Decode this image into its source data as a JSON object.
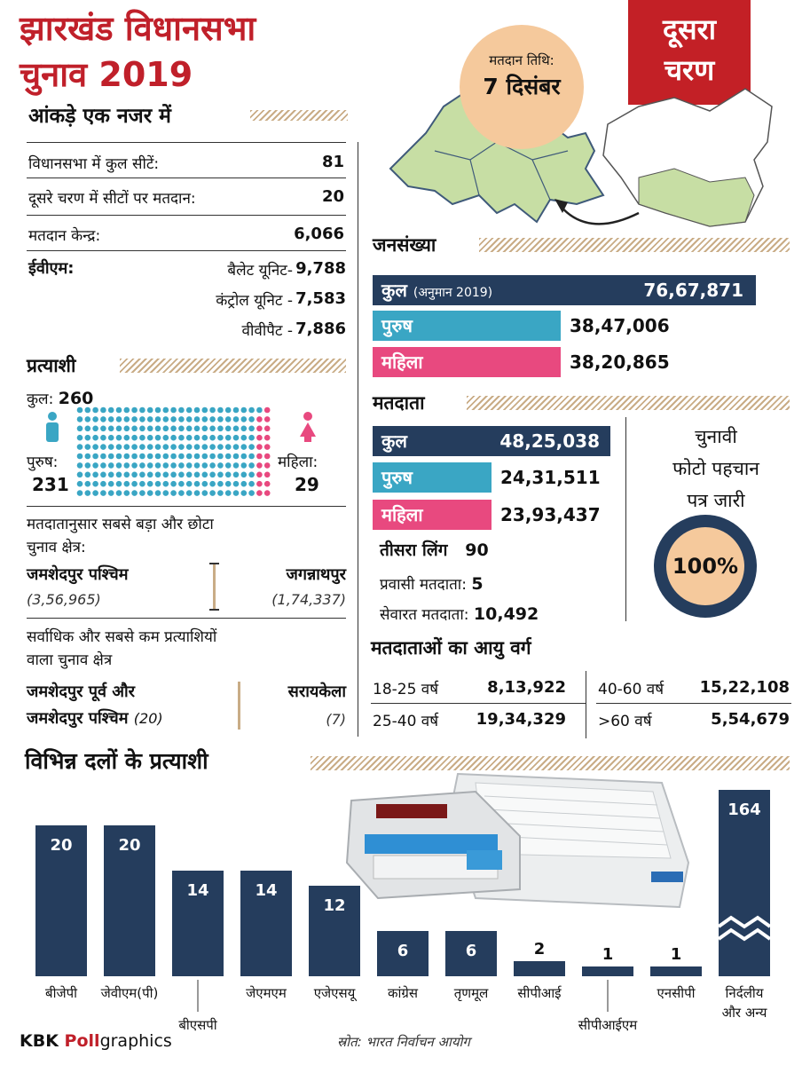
{
  "header": {
    "title_line1": "झारखंड विधानसभा",
    "title_line2": "चुनाव 2019",
    "subtitle": "आंकड़े एक नजर में",
    "stage_line1": "दूसरा",
    "stage_line2": "चरण",
    "poll_date_label": "मतदान तिथि:",
    "poll_date": "7 दिसंबर"
  },
  "stats": [
    {
      "label": "विधानसभा में कुल सीटें:",
      "value": "81"
    },
    {
      "label": "दूसरे चरण में सीटों पर मतदान:",
      "value": "20"
    },
    {
      "label": "मतदान केन्द्र:",
      "value": "6,066"
    }
  ],
  "evm": {
    "label": "ईवीएम:",
    "rows": [
      {
        "label": "बैलेट यूनिट-",
        "value": "9,788"
      },
      {
        "label": "कंट्रोल यूनिट -",
        "value": "7,583"
      },
      {
        "label": "वीवीपैट -",
        "value": "7,886"
      }
    ]
  },
  "candidates": {
    "heading": "प्रत्याशी",
    "total_label": "कुल:",
    "total": "260",
    "male_label": "पुरुष:",
    "male": "231",
    "female_label": "महिला:",
    "female": "29",
    "male_color": "#3aa6c4",
    "female_color": "#e8497f"
  },
  "largest_smallest": {
    "heading_line1": "मतदातानुसार सबसे बड़ा और छोटा",
    "heading_line2": "चुनाव क्षेत्र:",
    "largest_name": "जमशेदपुर पश्चिम",
    "largest_value": "(3,56,965)",
    "smallest_name": "जगन्नाथपुर",
    "smallest_value": "(1,74,337)"
  },
  "most_least_candidates": {
    "heading_line1": "सर्वाधिक और सबसे कम प्रत्याशियों",
    "heading_line2": "वाला चुनाव क्षेत्र",
    "most_line1": "जमशेदपुर पूर्व और",
    "most_line2": "जमशेदपुर पश्चिम",
    "most_value": "(20)",
    "least_name": "सरायकेला",
    "least_value": "(7)"
  },
  "population": {
    "heading": "जनसंख्या",
    "total_label": "कुल",
    "total_note": "(अनुमान 2019)",
    "total": "76,67,871",
    "male_label": "पुरुष",
    "male": "38,47,006",
    "female_label": "महिला",
    "female": "38,20,865"
  },
  "voters": {
    "heading": "मतदाता",
    "total_label": "कुल",
    "total": "48,25,038",
    "male_label": "पुरुष",
    "male": "24,31,511",
    "female_label": "महिला",
    "female": "23,93,437",
    "third_label": "तीसरा लिंग",
    "third": "90",
    "overseas_label": "प्रवासी मतदाता:",
    "overseas": "5",
    "service_label": "सेवारत मतदाता:",
    "service": "10,492"
  },
  "epic": {
    "line1": "चुनावी",
    "line2": "फोटो पहचान",
    "line3": "पत्र जारी",
    "percent": "100%"
  },
  "age_groups": {
    "heading": "मतदाताओं का आयु वर्ग",
    "items": [
      {
        "label": "18-25 वर्ष",
        "value": "8,13,922"
      },
      {
        "label": "25-40 वर्ष",
        "value": "19,34,329"
      },
      {
        "label": "40-60 वर्ष",
        "value": "15,22,108"
      },
      {
        "label": ">60 वर्ष",
        "value": "5,54,679"
      }
    ]
  },
  "party_chart": {
    "heading": "विभिन्न दलों के प्रत्याशी"
  },
  "chart_data": {
    "type": "bar",
    "title": "विभिन्न दलों के प्रत्याशी",
    "categories": [
      "बीजेपी",
      "जेवीएम(पी)",
      "बीएसपी",
      "जेएमएम",
      "एजेएसयू",
      "कांग्रेस",
      "तृणमूल",
      "सीपीआई",
      "सीपीआईएम",
      "एनसीपी",
      "निर्दलीय और अन्य"
    ],
    "values": [
      20,
      20,
      14,
      14,
      12,
      6,
      6,
      2,
      1,
      1,
      164
    ],
    "axis_break_on": "निर्दलीय और अन्य",
    "xlabel": "",
    "ylabel": ""
  },
  "footer": {
    "brand_prefix": "KBK ",
    "brand_poll": "Poll",
    "brand_suffix": "graphics",
    "source": "स्रोत: भारत निर्वाचन आयोग"
  }
}
